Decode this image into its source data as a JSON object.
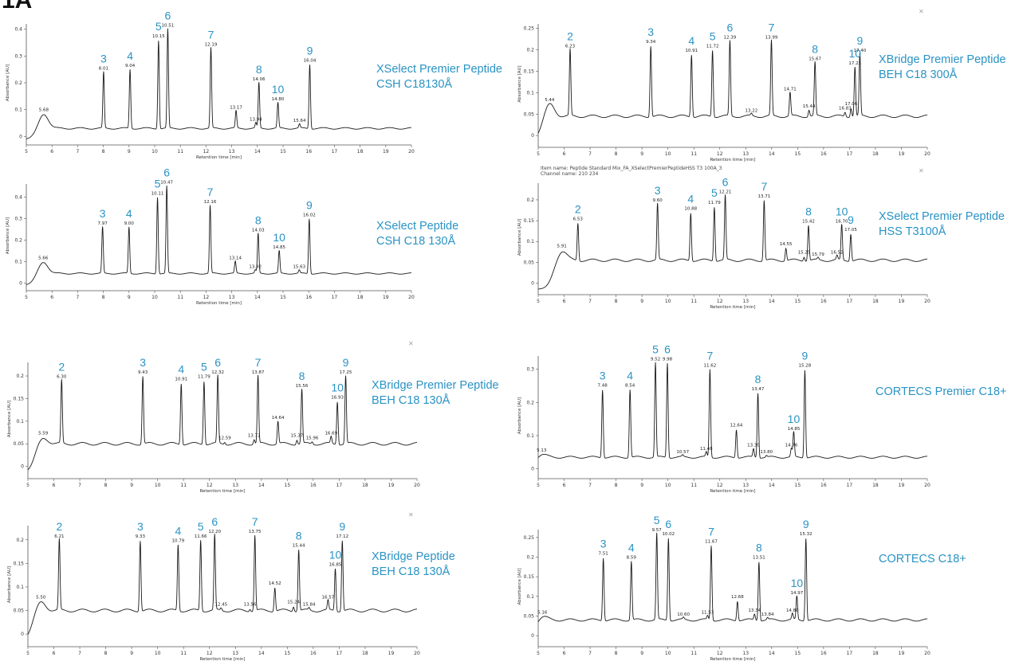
{
  "figure_label": "1A",
  "chart_data": [
    {
      "type": "line",
      "column_label": [
        "XSelect Premier Peptide",
        "CSH C18130Å"
      ],
      "xlabel": "Retention time [min]",
      "ylabel": "Absorbance [AU]",
      "xlim": [
        5,
        20
      ],
      "ylim": [
        -0.02,
        0.42
      ],
      "yticks": [
        0,
        0.1,
        0.2,
        0.3,
        0.4
      ],
      "baseline": 0.03,
      "hump": {
        "x": 5.68,
        "y": 0.085,
        "label": "5.68"
      },
      "peaks": [
        {
          "x": 8.01,
          "y": 0.24,
          "label": "8.01",
          "number": "3"
        },
        {
          "x": 9.04,
          "y": 0.25,
          "label": "9.04",
          "number": "4"
        },
        {
          "x": 10.15,
          "y": 0.36,
          "label": "10.15",
          "number": "5"
        },
        {
          "x": 10.51,
          "y": 0.4,
          "label": "10.51",
          "number": "6"
        },
        {
          "x": 12.19,
          "y": 0.33,
          "label": "12.19",
          "number": "7"
        },
        {
          "x": 13.17,
          "y": 0.095,
          "label": "13.17"
        },
        {
          "x": 13.94,
          "y": 0.05,
          "label": "13.94"
        },
        {
          "x": 14.06,
          "y": 0.2,
          "label": "14.06",
          "number": "8"
        },
        {
          "x": 14.8,
          "y": 0.125,
          "label": "14.80",
          "number": "10"
        },
        {
          "x": 15.64,
          "y": 0.045,
          "label": "15.64"
        },
        {
          "x": 16.04,
          "y": 0.27,
          "label": "16.04",
          "number": "9"
        }
      ]
    },
    {
      "type": "line",
      "column_label": [
        "XBridge Premier Peptide",
        "BEH C18 300Å"
      ],
      "xlabel": "Retention time [min]",
      "ylabel": "Absorbance [AU]",
      "xlim": [
        5,
        20
      ],
      "ylim": [
        -0.02,
        0.26
      ],
      "yticks": [
        0,
        0.05,
        0.1,
        0.15,
        0.2,
        0.25
      ],
      "baseline": 0.045,
      "hump": {
        "x": 5.44,
        "y": 0.075,
        "label": "5.44"
      },
      "peaks": [
        {
          "x": 6.23,
          "y": 0.2,
          "label": "6.23",
          "number": "2"
        },
        {
          "x": 9.34,
          "y": 0.21,
          "label": "9.34",
          "number": "3"
        },
        {
          "x": 10.91,
          "y": 0.19,
          "label": "10.91",
          "number": "4"
        },
        {
          "x": 11.72,
          "y": 0.2,
          "label": "11.72",
          "number": "5"
        },
        {
          "x": 12.39,
          "y": 0.22,
          "label": "12.39",
          "number": "6"
        },
        {
          "x": 13.22,
          "y": 0.05,
          "label": "13.22"
        },
        {
          "x": 13.99,
          "y": 0.22,
          "label": "13.99",
          "number": "7"
        },
        {
          "x": 14.71,
          "y": 0.1,
          "label": "14.71"
        },
        {
          "x": 15.44,
          "y": 0.06,
          "label": "15.44"
        },
        {
          "x": 15.67,
          "y": 0.17,
          "label": "15.67",
          "number": "8"
        },
        {
          "x": 16.83,
          "y": 0.055,
          "label": "16.83"
        },
        {
          "x": 17.06,
          "y": 0.065,
          "label": "17.06"
        },
        {
          "x": 17.21,
          "y": 0.16,
          "label": "17.21",
          "number": "10"
        },
        {
          "x": 17.4,
          "y": 0.19,
          "label": "17.40",
          "number": "9"
        }
      ]
    },
    {
      "type": "line",
      "column_label": [
        "XSelect Peptide",
        "CSH C18 130Å"
      ],
      "xlabel": "Retention time [min]",
      "ylabel": "Absorbance [AU]",
      "xlim": [
        5,
        20
      ],
      "ylim": [
        -0.02,
        0.46
      ],
      "yticks": [
        0,
        0.1,
        0.2,
        0.3,
        0.4
      ],
      "baseline": 0.045,
      "hump": {
        "x": 5.66,
        "y": 0.1,
        "label": "5.66"
      },
      "peaks": [
        {
          "x": 7.97,
          "y": 0.26,
          "label": "7.97",
          "number": "3"
        },
        {
          "x": 9.0,
          "y": 0.26,
          "label": "9.00",
          "number": "4"
        },
        {
          "x": 10.11,
          "y": 0.4,
          "label": "10.11",
          "number": "5"
        },
        {
          "x": 10.47,
          "y": 0.45,
          "label": "10.47",
          "number": "6"
        },
        {
          "x": 12.16,
          "y": 0.36,
          "label": "12.16",
          "number": "7"
        },
        {
          "x": 13.14,
          "y": 0.1,
          "label": "13.14"
        },
        {
          "x": 13.92,
          "y": 0.06,
          "label": "13.92"
        },
        {
          "x": 14.03,
          "y": 0.23,
          "label": "14.03",
          "number": "8"
        },
        {
          "x": 14.85,
          "y": 0.15,
          "label": "14.85",
          "number": "10"
        },
        {
          "x": 15.63,
          "y": 0.06,
          "label": "15.63"
        },
        {
          "x": 16.02,
          "y": 0.3,
          "label": "16.02",
          "number": "9"
        }
      ]
    },
    {
      "type": "line",
      "header_lines": [
        "Item name: Peptide Standard Mix_FA_XSelectPremierPeptideHSS T3 100A_3",
        "Channel name: 210 234"
      ],
      "column_label": [
        "XSelect Premier Peptide",
        "HSS T3100Å"
      ],
      "xlabel": "Retention time [min]",
      "ylabel": "Absorbance [AU]",
      "xlim": [
        5,
        20
      ],
      "ylim": [
        -0.02,
        0.24
      ],
      "yticks": [
        0,
        0.05,
        0.1,
        0.15,
        0.2
      ],
      "baseline": 0.055,
      "hump": {
        "x": 5.91,
        "y": 0.08,
        "label": "5.91"
      },
      "peaks": [
        {
          "x": 6.53,
          "y": 0.145,
          "label": "6.53",
          "number": "2"
        },
        {
          "x": 9.6,
          "y": 0.19,
          "label": "9.60",
          "number": "3"
        },
        {
          "x": 10.88,
          "y": 0.17,
          "label": "10.88",
          "number": "4"
        },
        {
          "x": 11.79,
          "y": 0.185,
          "label": "11.79",
          "number": "5"
        },
        {
          "x": 12.21,
          "y": 0.21,
          "label": "12.21",
          "number": "6"
        },
        {
          "x": 13.71,
          "y": 0.2,
          "label": "13.71",
          "number": "7"
        },
        {
          "x": 14.55,
          "y": 0.085,
          "label": "14.55"
        },
        {
          "x": 15.25,
          "y": 0.065,
          "label": "15.25"
        },
        {
          "x": 15.42,
          "y": 0.14,
          "label": "15.42",
          "number": "8"
        },
        {
          "x": 15.79,
          "y": 0.06,
          "label": "15.79"
        },
        {
          "x": 16.52,
          "y": 0.065,
          "label": "16.52"
        },
        {
          "x": 16.7,
          "y": 0.14,
          "label": "16.70",
          "number": "10"
        },
        {
          "x": 17.05,
          "y": 0.12,
          "label": "17.05",
          "number": "9"
        }
      ]
    },
    {
      "type": "line",
      "column_label": [
        "XBridge Premier Peptide",
        "BEH C18 130Å"
      ],
      "xlabel": "Retention time [min]",
      "ylabel": "Absorbance [AU]",
      "xlim": [
        5,
        20
      ],
      "ylim": [
        -0.02,
        0.23
      ],
      "yticks": [
        0,
        0.05,
        0.1,
        0.15,
        0.2
      ],
      "baseline": 0.05,
      "hump": {
        "x": 5.59,
        "y": 0.065,
        "label": "5.59"
      },
      "peaks": [
        {
          "x": 6.3,
          "y": 0.19,
          "label": "6.30",
          "number": "2"
        },
        {
          "x": 9.43,
          "y": 0.2,
          "label": "9.43",
          "number": "3"
        },
        {
          "x": 10.91,
          "y": 0.185,
          "label": "10.91",
          "number": "4"
        },
        {
          "x": 11.79,
          "y": 0.19,
          "label": "11.79",
          "number": "5"
        },
        {
          "x": 12.32,
          "y": 0.2,
          "label": "12.32",
          "number": "6"
        },
        {
          "x": 12.59,
          "y": 0.055,
          "label": "12.59"
        },
        {
          "x": 13.72,
          "y": 0.06,
          "label": "13.72"
        },
        {
          "x": 13.87,
          "y": 0.2,
          "label": "13.87",
          "number": "7"
        },
        {
          "x": 14.64,
          "y": 0.1,
          "label": "14.64"
        },
        {
          "x": 15.37,
          "y": 0.06,
          "label": "15.37"
        },
        {
          "x": 15.56,
          "y": 0.17,
          "label": "15.56",
          "number": "8"
        },
        {
          "x": 15.96,
          "y": 0.055,
          "label": "15.96"
        },
        {
          "x": 16.69,
          "y": 0.065,
          "label": "16.69"
        },
        {
          "x": 16.93,
          "y": 0.145,
          "label": "16.93",
          "number": "10"
        },
        {
          "x": 17.25,
          "y": 0.2,
          "label": "17.25",
          "number": "9"
        }
      ]
    },
    {
      "type": "line",
      "column_label": [
        "CORTECS Premier C18+"
      ],
      "xlabel": "Retention time [min]",
      "ylabel": "Absorbance [AU]",
      "xlim": [
        5,
        20
      ],
      "ylim": [
        -0.02,
        0.34
      ],
      "yticks": [
        0,
        0.1,
        0.2,
        0.3
      ],
      "baseline": 0.035,
      "hump": {
        "x": 5.13,
        "y": 0.045,
        "label": "5.13"
      },
      "peaks": [
        {
          "x": 7.48,
          "y": 0.24,
          "label": "7.48",
          "number": "3"
        },
        {
          "x": 8.54,
          "y": 0.24,
          "label": "8.54",
          "number": "4"
        },
        {
          "x": 9.52,
          "y": 0.32,
          "label": "9.52",
          "number": "5"
        },
        {
          "x": 9.98,
          "y": 0.32,
          "label": "9.98",
          "number": "6"
        },
        {
          "x": 10.57,
          "y": 0.04,
          "label": "10.57"
        },
        {
          "x": 11.48,
          "y": 0.05,
          "label": "11.48"
        },
        {
          "x": 11.62,
          "y": 0.3,
          "label": "11.62",
          "number": "7"
        },
        {
          "x": 12.64,
          "y": 0.12,
          "label": "12.64"
        },
        {
          "x": 13.3,
          "y": 0.06,
          "label": "13.30"
        },
        {
          "x": 13.47,
          "y": 0.23,
          "label": "13.47",
          "number": "8"
        },
        {
          "x": 13.8,
          "y": 0.04,
          "label": "13.80"
        },
        {
          "x": 14.76,
          "y": 0.06,
          "label": "14.76"
        },
        {
          "x": 14.85,
          "y": 0.11,
          "label": "14.85",
          "number": "10"
        },
        {
          "x": 15.28,
          "y": 0.3,
          "label": "15.28",
          "number": "9"
        }
      ]
    },
    {
      "type": "line",
      "column_label": [
        "XBridge Peptide",
        "BEH C18 130Å"
      ],
      "xlabel": "Retention time [min]",
      "ylabel": "Absorbance [AU]",
      "xlim": [
        5,
        20
      ],
      "ylim": [
        -0.02,
        0.23
      ],
      "yticks": [
        0,
        0.05,
        0.1,
        0.15,
        0.2
      ],
      "baseline": 0.05,
      "hump": {
        "x": 5.5,
        "y": 0.07,
        "label": "5.50"
      },
      "peaks": [
        {
          "x": 6.21,
          "y": 0.2,
          "label": "6.21",
          "number": "2"
        },
        {
          "x": 9.33,
          "y": 0.2,
          "label": "9.33",
          "number": "3"
        },
        {
          "x": 10.79,
          "y": 0.19,
          "label": "10.79",
          "number": "4"
        },
        {
          "x": 11.66,
          "y": 0.2,
          "label": "11.66",
          "number": "5"
        },
        {
          "x": 12.2,
          "y": 0.21,
          "label": "12.20",
          "number": "6"
        },
        {
          "x": 12.45,
          "y": 0.055,
          "label": "12.45"
        },
        {
          "x": 13.56,
          "y": 0.055,
          "label": "13.56"
        },
        {
          "x": 13.75,
          "y": 0.21,
          "label": "13.75",
          "number": "7"
        },
        {
          "x": 14.52,
          "y": 0.1,
          "label": "14.52"
        },
        {
          "x": 15.24,
          "y": 0.06,
          "label": "15.24"
        },
        {
          "x": 15.44,
          "y": 0.18,
          "label": "15.44",
          "number": "8"
        },
        {
          "x": 15.84,
          "y": 0.055,
          "label": "15.84"
        },
        {
          "x": 16.57,
          "y": 0.07,
          "label": "16.57"
        },
        {
          "x": 16.85,
          "y": 0.14,
          "label": "16.85",
          "number": "10"
        },
        {
          "x": 17.12,
          "y": 0.2,
          "label": "17.12",
          "number": "9"
        }
      ]
    },
    {
      "type": "line",
      "column_label": [
        "CORTECS C18+"
      ],
      "xlabel": "Retention time [min]",
      "ylabel": "Absorbance [AU]",
      "xlim": [
        5,
        20
      ],
      "ylim": [
        -0.02,
        0.27
      ],
      "yticks": [
        0,
        0.05,
        0.1,
        0.15,
        0.2,
        0.25
      ],
      "baseline": 0.04,
      "hump": {
        "x": 5.16,
        "y": 0.05,
        "label": "5.16"
      },
      "peaks": [
        {
          "x": 7.51,
          "y": 0.2,
          "label": "7.51",
          "number": "3"
        },
        {
          "x": 8.59,
          "y": 0.19,
          "label": "8.59",
          "number": "4"
        },
        {
          "x": 9.57,
          "y": 0.26,
          "label": "9.57",
          "number": "5"
        },
        {
          "x": 10.02,
          "y": 0.25,
          "label": "10.02",
          "number": "6"
        },
        {
          "x": 10.6,
          "y": 0.045,
          "label": "10.60"
        },
        {
          "x": 11.53,
          "y": 0.05,
          "label": "11.53"
        },
        {
          "x": 11.67,
          "y": 0.23,
          "label": "11.67",
          "number": "7"
        },
        {
          "x": 12.68,
          "y": 0.09,
          "label": "12.68"
        },
        {
          "x": 13.34,
          "y": 0.055,
          "label": "13.34"
        },
        {
          "x": 13.51,
          "y": 0.19,
          "label": "13.51",
          "number": "8"
        },
        {
          "x": 13.84,
          "y": 0.045,
          "label": "13.84"
        },
        {
          "x": 14.8,
          "y": 0.055,
          "label": "14.80"
        },
        {
          "x": 14.97,
          "y": 0.1,
          "label": "14.97",
          "number": "10"
        },
        {
          "x": 15.32,
          "y": 0.25,
          "label": "15.32",
          "number": "9"
        }
      ]
    }
  ]
}
